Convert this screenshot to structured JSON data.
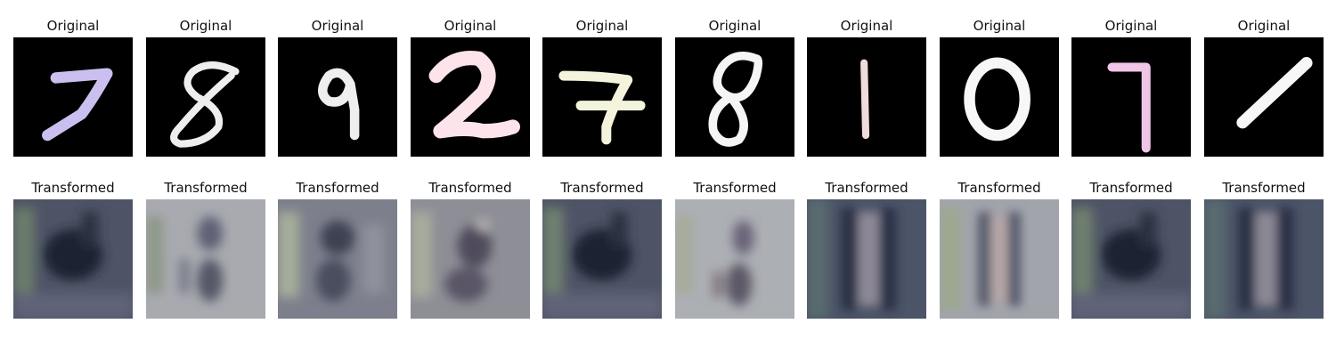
{
  "rows": [
    {
      "title": "Original",
      "panels": [
        {
          "digit": "7",
          "tint": "#cbbff0"
        },
        {
          "digit": "8",
          "tint": "#eeeeee"
        },
        {
          "digit": "9",
          "tint": "#eeeeee"
        },
        {
          "digit": "2",
          "tint": "#fde3ea"
        },
        {
          "digit": "7",
          "tint": "#f4f3dc"
        },
        {
          "digit": "8",
          "tint": "#f5f5f5"
        },
        {
          "digit": "1",
          "tint": "#f0dcdc"
        },
        {
          "digit": "0",
          "tint": "#f7f7f7"
        },
        {
          "digit": "7",
          "tint": "#efc6e8"
        },
        {
          "digit": "1",
          "tint": "#f7f7f7"
        }
      ]
    },
    {
      "title": "Transformed",
      "panels": [
        {
          "tone": "dark"
        },
        {
          "tone": "light"
        },
        {
          "tone": "mid"
        },
        {
          "tone": "mid"
        },
        {
          "tone": "dark"
        },
        {
          "tone": "light"
        },
        {
          "tone": "dark"
        },
        {
          "tone": "light"
        },
        {
          "tone": "dark"
        },
        {
          "tone": "dark"
        }
      ]
    }
  ],
  "colors": {
    "original_background": "#000000",
    "transformed_dark_base": "#4e5466",
    "transformed_mid_base": "#7d808c",
    "transformed_light_base": "#a8aab0"
  }
}
